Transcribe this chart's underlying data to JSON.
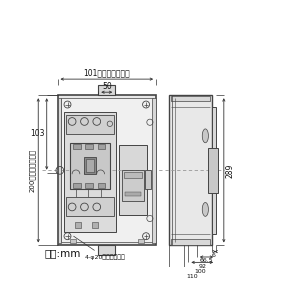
{
  "bg_color": "#ffffff",
  "line_color": "#444444",
  "dim_color": "#333333",
  "gray1": "#d8d8d8",
  "gray2": "#e8e8e8",
  "gray3": "#c8c8c8",
  "gray4": "#b8b8b8",
  "text_color": "#111111",
  "label_101": "101（取付ピッチ）",
  "label_50": "50",
  "label_103": "103",
  "label_200": "200（取付ピッチ）",
  "label_knockout": "4-φ20ノックアウト",
  "label_289": "289",
  "label_6": "6",
  "label_66_5": "66.5",
  "label_92": "92",
  "label_100": "100",
  "label_110": "110",
  "label_unit": "単位:mm"
}
